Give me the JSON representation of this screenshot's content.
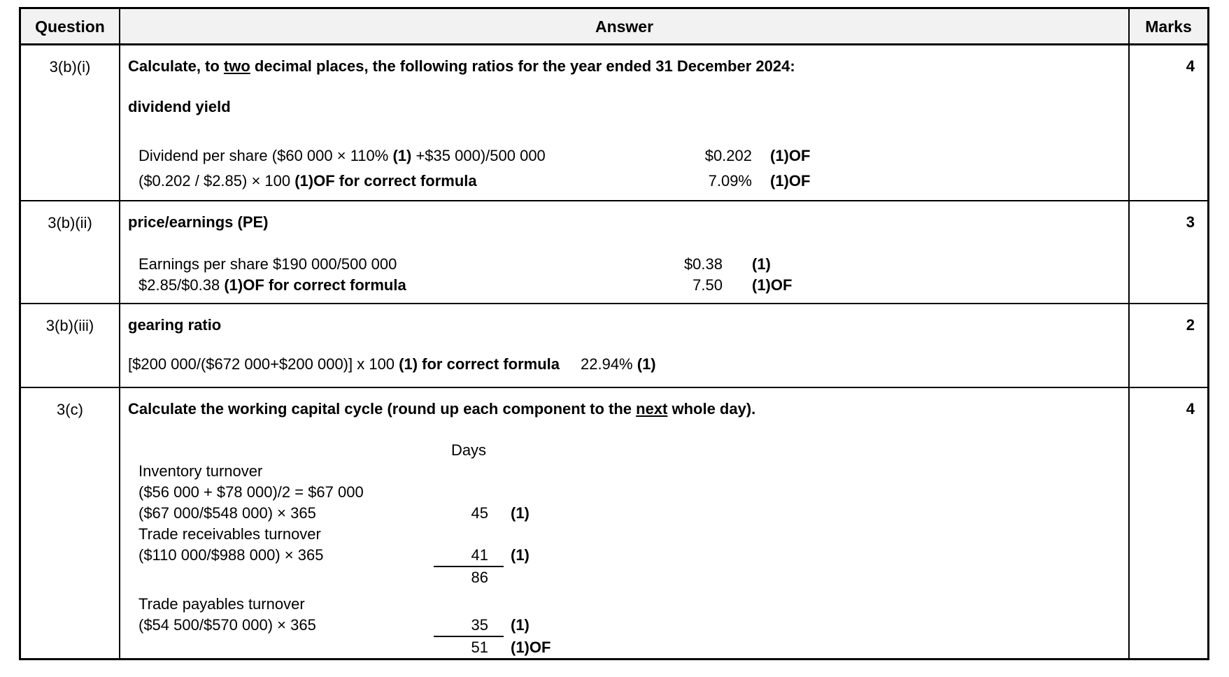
{
  "header": {
    "question": "Question",
    "answer": "Answer",
    "marks": "Marks"
  },
  "rows": [
    {
      "question": "3(b)(i)",
      "marks": "4",
      "prompt": {
        "pre": "Calculate, to ",
        "underline": "two",
        "post": " decimal places, the following ratios for the year ended 31 December 2024:"
      },
      "subtitle": "dividend yield",
      "calc": [
        {
          "t1": "Dividend per share ($60 000 × 110% ",
          "b1": "(1)",
          "t2": " +$35 000)/500 000",
          "value": "$0.202",
          "mark": "(1)OF"
        },
        {
          "t1": "($0.202 / $2.85) × 100 ",
          "b1": "(1)OF for correct formula",
          "t2": "",
          "value": "7.09%",
          "mark": "(1)OF"
        }
      ]
    },
    {
      "question": "3(b)(ii)",
      "marks": "3",
      "title": "price/earnings (PE)",
      "calc": [
        {
          "t1": "Earnings per share $190 000/500 000",
          "b1": "",
          "t2": "",
          "value": "$0.38",
          "mark": "(1)"
        },
        {
          "t1": "$2.85/$0.38 ",
          "b1": "(1)OF for correct formula",
          "t2": "",
          "value": "7.50",
          "mark": "(1)OF"
        }
      ]
    },
    {
      "question": "3(b)(iii)",
      "marks": "2",
      "title": "gearing ratio",
      "formula": {
        "t1": "[$200 000/($672 000+$200 000)] x 100 ",
        "b1": "(1) for correct formula",
        "value": "22.94%",
        "mark": "(1)"
      }
    },
    {
      "question": "3(c)",
      "marks": "4",
      "prompt": {
        "pre": "Calculate the working capital cycle (round up each component to the ",
        "underline": "next",
        "post": " whole day)."
      },
      "days_header": "Days",
      "lines": [
        {
          "text": "Inventory turnover",
          "value": "",
          "mark": ""
        },
        {
          "text": "($56 000 + $78 000)/2 = $67 000",
          "value": "",
          "mark": ""
        },
        {
          "text": "($67 000/$548 000) × 365",
          "value": "45",
          "mark": "(1)"
        },
        {
          "text": "Trade receivables turnover",
          "value": "",
          "mark": ""
        },
        {
          "text": "($110 000/$988 000) × 365",
          "value": "41",
          "mark": "(1)"
        },
        {
          "text": "",
          "value": "86",
          "mark": ""
        },
        {
          "text": "Trade payables turnover",
          "value": "",
          "mark": ""
        },
        {
          "text": "($54 500/$570 000) × 365",
          "value": "35",
          "mark": "(1)"
        },
        {
          "text": "",
          "value": "51",
          "mark": "(1)OF"
        }
      ]
    }
  ]
}
